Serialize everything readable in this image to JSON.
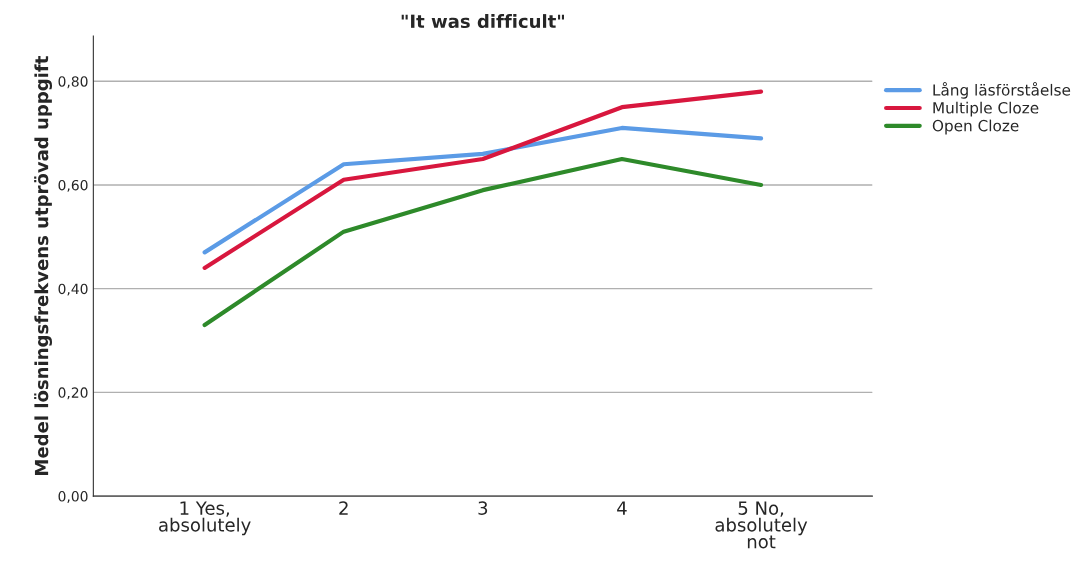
{
  "chart_data": {
    "type": "line",
    "title": "\"It was difficult\"",
    "ylabel": "Medel lösningsfrekvens utprövad uppgift",
    "categories": [
      "1 Yes,\nabsolutely",
      "2",
      "3",
      "4",
      "5 No,\nabsolutely\nnot"
    ],
    "series": [
      {
        "name": "Lång läsförståelse",
        "color": "#5b9be6",
        "values": [
          0.47,
          0.64,
          0.66,
          0.71,
          0.69
        ]
      },
      {
        "name": "Multiple Cloze",
        "color": "#d8173e",
        "values": [
          0.44,
          0.61,
          0.65,
          0.75,
          0.78
        ]
      },
      {
        "name": "Open Cloze",
        "color": "#2e8a2a",
        "values": [
          0.33,
          0.51,
          0.59,
          0.65,
          0.6
        ]
      }
    ],
    "ylim": [
      0,
      0.887
    ],
    "yticks": [
      {
        "value": 0,
        "label": "0,00"
      },
      {
        "value": 0.2,
        "label": "0,20"
      },
      {
        "value": 0.4,
        "label": "0,40"
      },
      {
        "value": 0.6,
        "label": "0,60"
      },
      {
        "value": 0.8,
        "label": "0,80"
      }
    ],
    "grid": "y",
    "legend": "top right",
    "marker": "none",
    "line_style": "solid"
  }
}
